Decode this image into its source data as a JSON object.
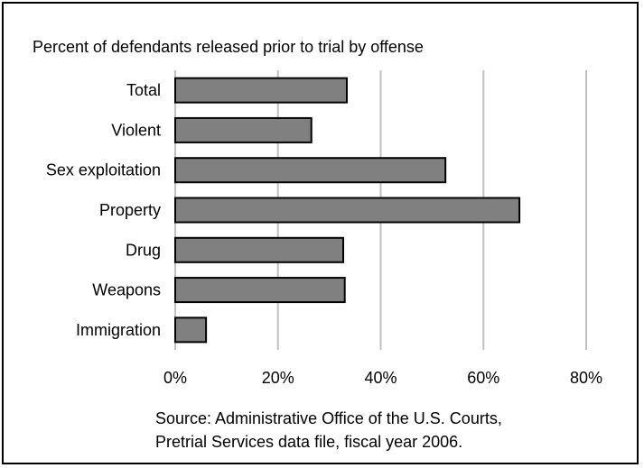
{
  "chart_data": {
    "type": "bar",
    "orientation": "horizontal",
    "title": "Percent of defendants released prior to trial by offense",
    "categories": [
      "Total",
      "Violent",
      "Sex exploitation",
      "Property",
      "Drug",
      "Weapons",
      "Immigration"
    ],
    "values": [
      33.4,
      26.5,
      52.6,
      67.0,
      32.7,
      33.0,
      6.0
    ],
    "xlim": [
      0,
      80
    ],
    "xticks": [
      "0%",
      "20%",
      "40%",
      "60%",
      "80%"
    ],
    "grid": true,
    "legend": "none",
    "colors": {
      "bar_fill": "#808080",
      "bar_stroke": "#000000",
      "grid": "#c0c0c0",
      "frame": "#000000"
    },
    "source_lines": [
      "Source: Administrative Office of the U.S. Courts,",
      "Pretrial Services data file, fiscal year 2006."
    ]
  }
}
